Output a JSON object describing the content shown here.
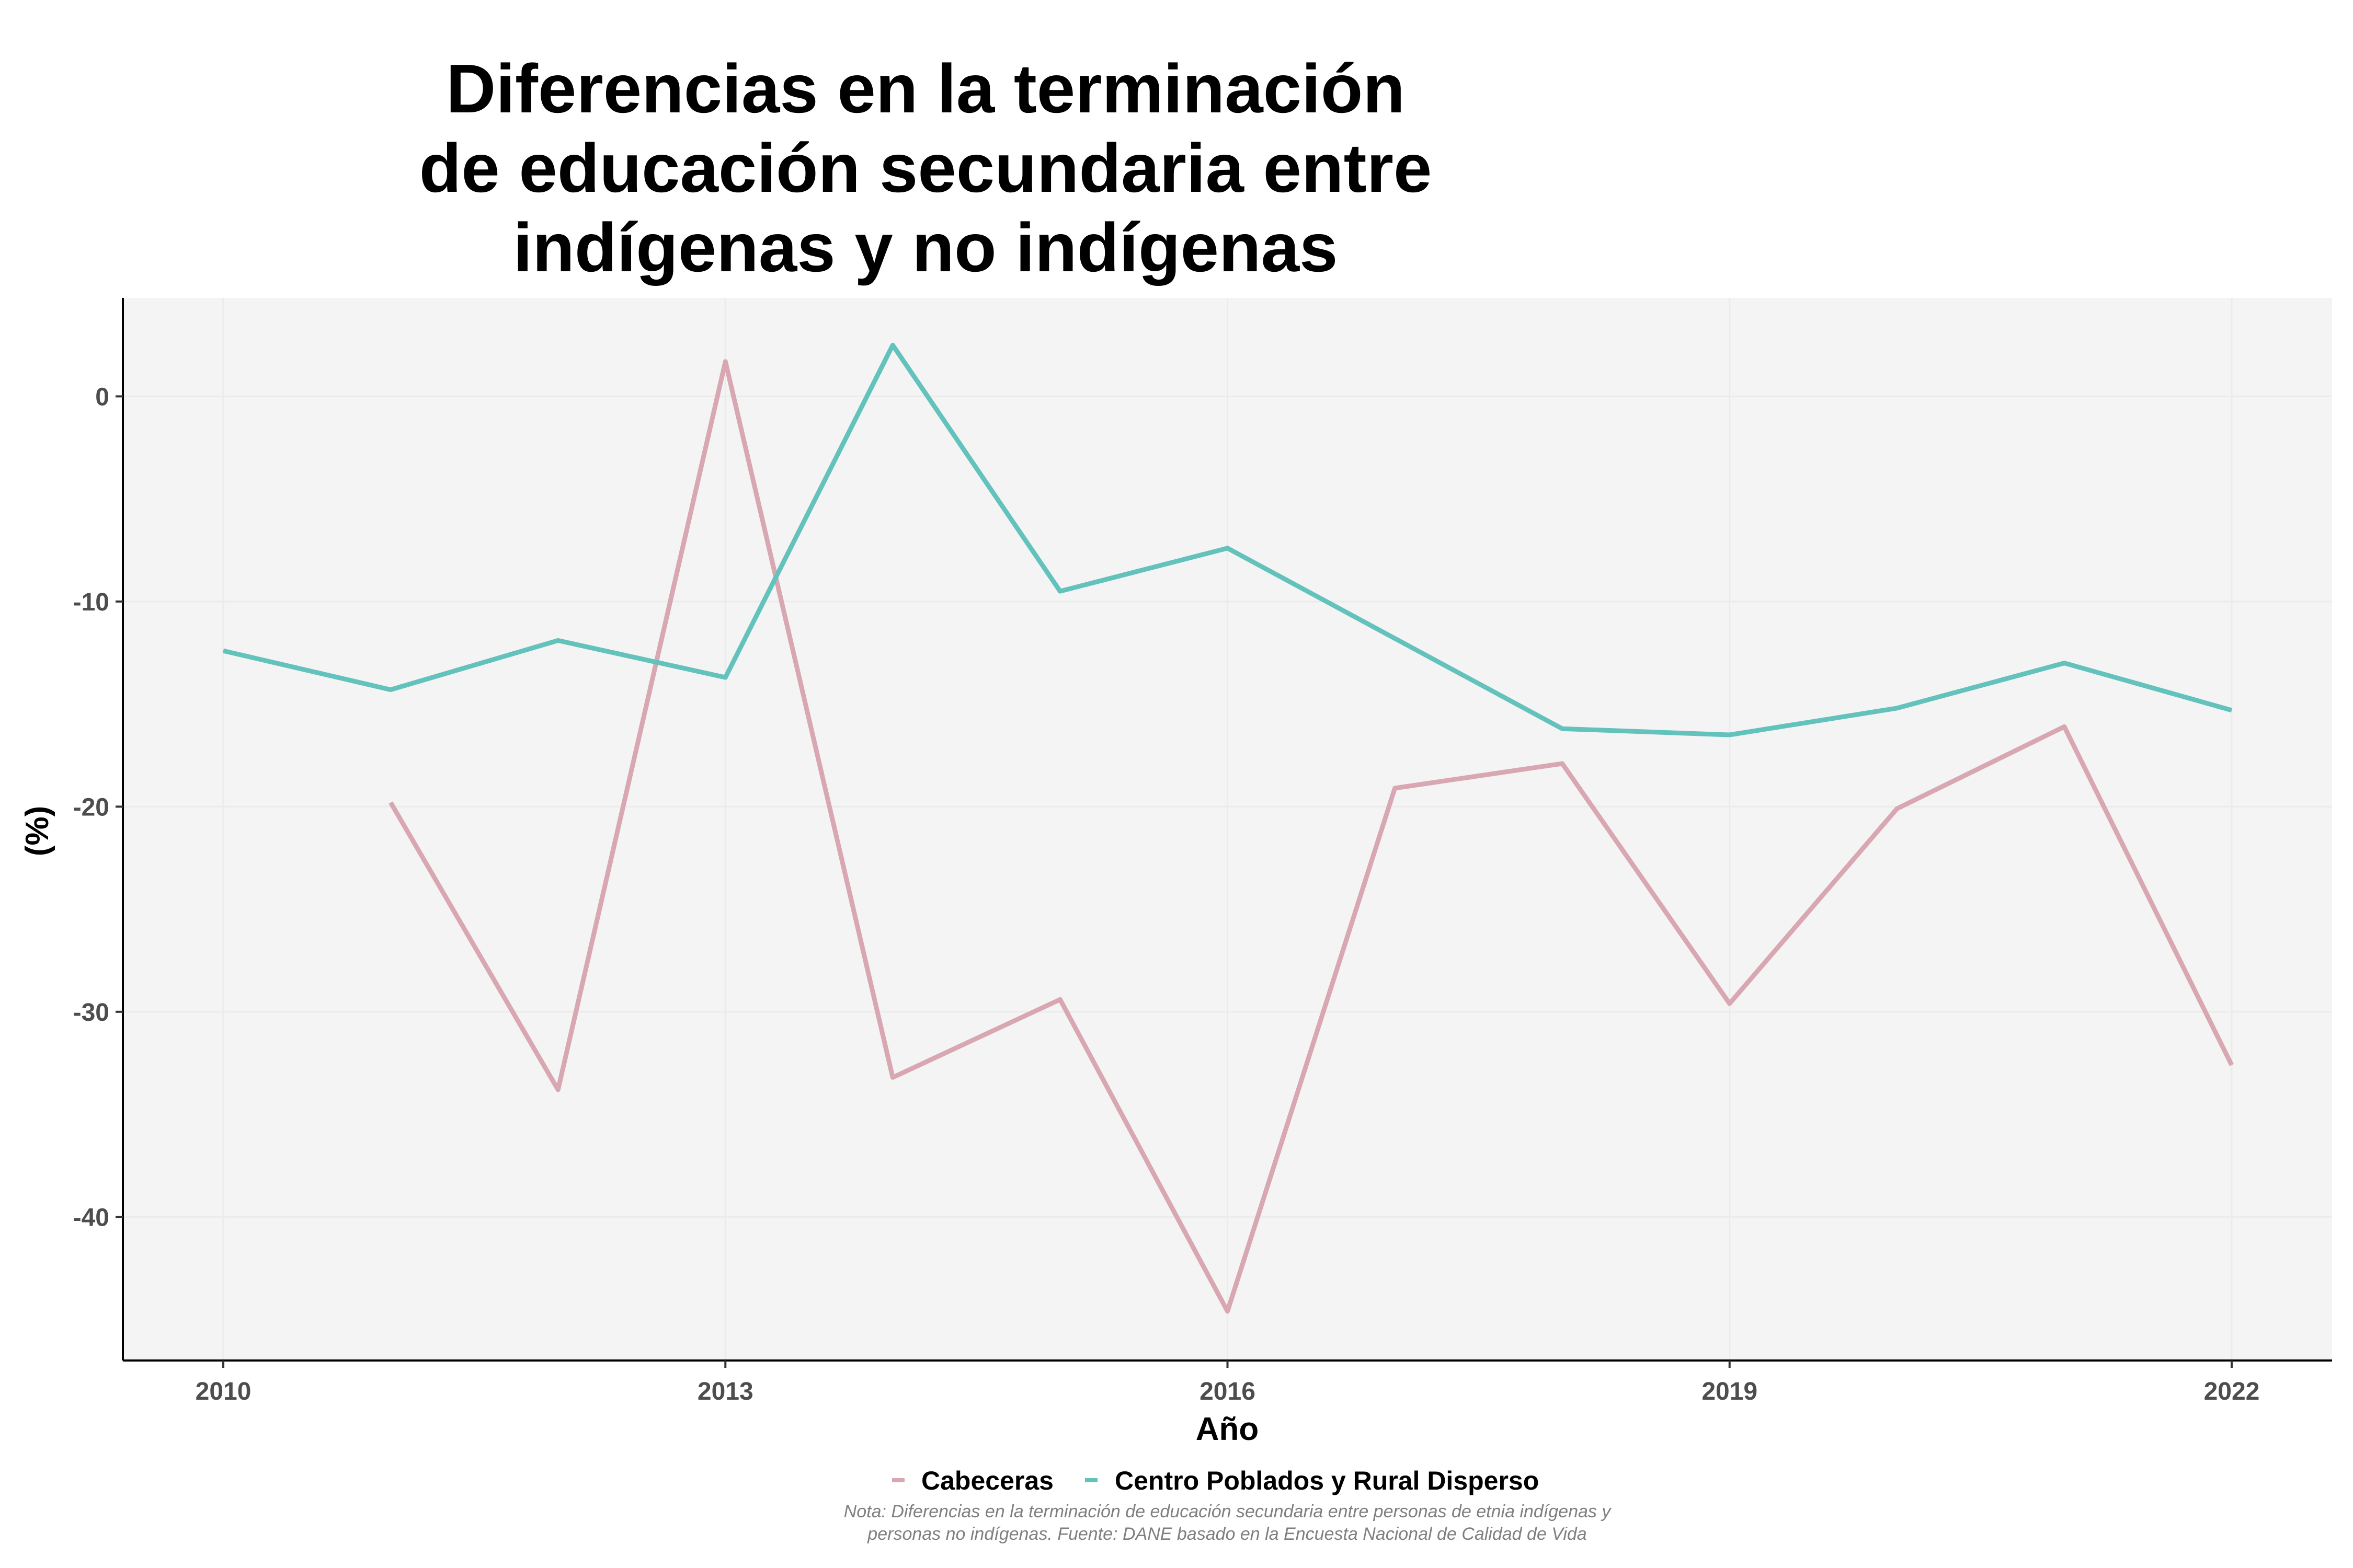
{
  "chart_data": {
    "type": "line",
    "title_lines": [
      "Diferencias en la terminación",
      "de educación secundaria entre",
      "indígenas y no indígenas"
    ],
    "xlabel": "Año",
    "ylabel": "(%)",
    "xlim": [
      2009.4,
      2022.6
    ],
    "ylim": [
      -47,
      4.8
    ],
    "x_ticks": [
      2010,
      2013,
      2016,
      2019,
      2022
    ],
    "x_tick_labels": [
      "2010",
      "2013",
      "2016",
      "2019",
      "2022"
    ],
    "y_ticks": [
      0,
      -10,
      -20,
      -30,
      -40
    ],
    "y_tick_labels": [
      "0",
      "-10",
      "-20",
      "-30",
      "-40"
    ],
    "grid": true,
    "legend_position": "bottom",
    "series": [
      {
        "name": "Cabeceras",
        "color": "#d8a7b1",
        "x": [
          2011,
          2012,
          2013,
          2014,
          2015,
          2016,
          2017,
          2018,
          2019,
          2020,
          2021,
          2022
        ],
        "values": [
          -19.8,
          -33.8,
          1.7,
          -33.2,
          -29.4,
          -44.6,
          -19.1,
          -17.9,
          -29.6,
          -20.1,
          -16.1,
          -32.6
        ]
      },
      {
        "name": "Centro Poblados y Rural Disperso",
        "color": "#63c2bc",
        "x": [
          2010,
          2011,
          2012,
          2013,
          2014,
          2015,
          2016,
          2017,
          2018,
          2019,
          2020,
          2021,
          2022
        ],
        "values": [
          -12.4,
          -14.3,
          -11.9,
          -13.7,
          2.5,
          -9.5,
          -7.4,
          -11.8,
          -16.2,
          -16.5,
          -15.2,
          -13.0,
          -15.3
        ]
      }
    ],
    "note_lines": [
      "Nota: Diferencias en la terminación de educación secundaria entre personas de etnia indígenas y",
      "personas no indígenas. Fuente: DANE basado en la Encuesta Nacional de Calidad de Vida"
    ]
  }
}
